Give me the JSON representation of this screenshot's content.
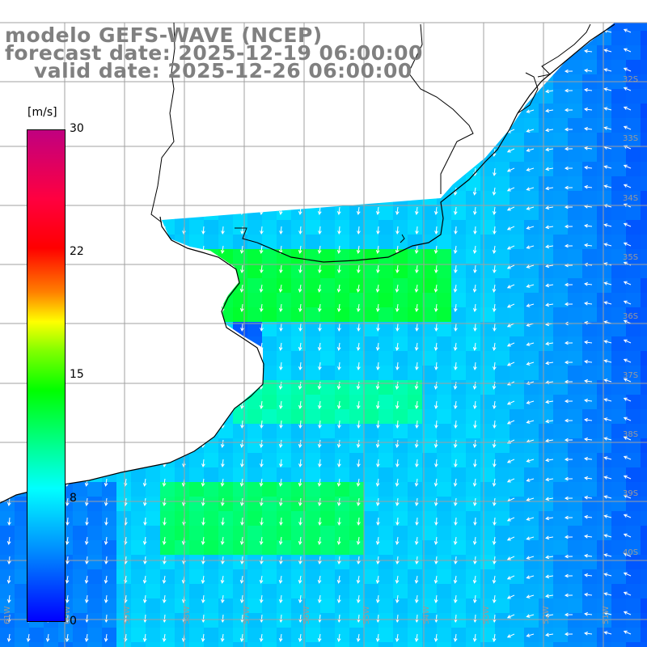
{
  "title": {
    "model": "modelo GEFS-WAVE (NCEP)",
    "forecast": "forecast date: 2025-12-19 06:00:00",
    "valid": "valid date: 2025-12-26 06:00:00"
  },
  "colorbar": {
    "unit": "[m/s]",
    "ticks": [
      "30",
      "22",
      "15",
      "8",
      "0"
    ],
    "min": 0,
    "max": 30,
    "colors": [
      "#0000ff",
      "#0080ff",
      "#00ffff",
      "#00ff80",
      "#00ff00",
      "#80ff00",
      "#ffff00",
      "#ff8000",
      "#ff0000",
      "#c00080"
    ]
  },
  "map": {
    "latitude_labels": [
      "32S",
      "33S",
      "34S",
      "35S",
      "36S",
      "37S",
      "38S",
      "39S",
      "40S"
    ],
    "longitude_labels": [
      "61W",
      "60W",
      "59W",
      "58W",
      "57W",
      "56W",
      "55W",
      "54W",
      "53W",
      "52W",
      "51W"
    ],
    "lat_range": [
      -41.5,
      -30.5
    ],
    "lon_range": [
      -61.7,
      -50.8
    ],
    "variable": "wind speed and direction",
    "land_color": "#ffffff",
    "coastline_color": "#000000",
    "grid_color": "#a0a0a0"
  }
}
